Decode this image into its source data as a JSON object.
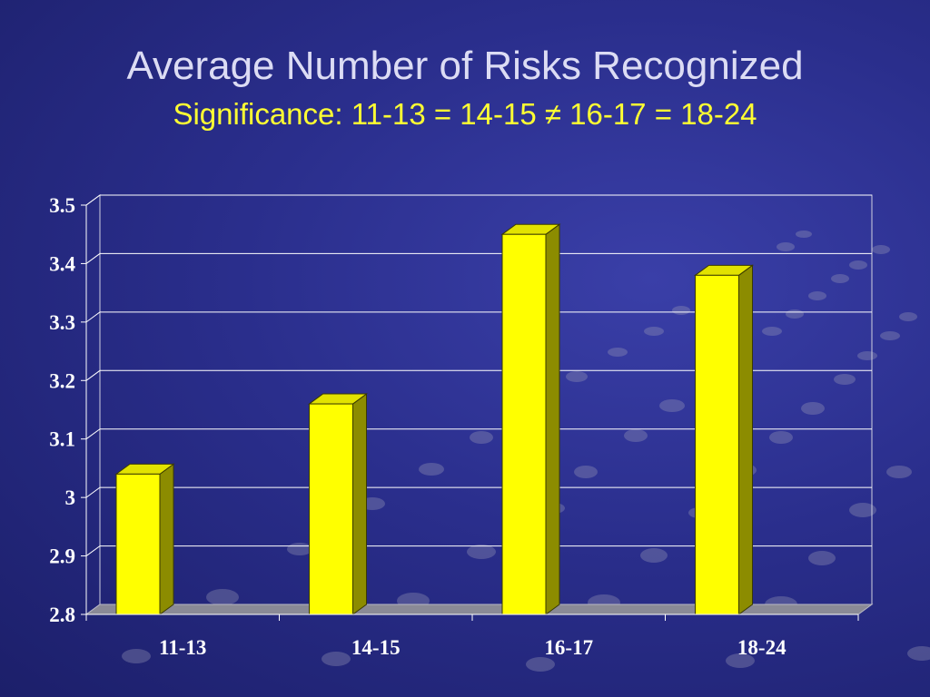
{
  "slide": {
    "title": "Average Number of Risks Recognized",
    "subtitle": "Significance: 11-13 = 14-15 ≠ 16-17 = 18-24"
  },
  "colors": {
    "background": "#2a2e8c",
    "title": "#dcdcf4",
    "subtitle": "#ffff33",
    "bar_front": "#ffff00",
    "bar_top": "#e2e200",
    "bar_side": "#8c8c00",
    "floor": "#8a8a96",
    "gridline": "#ffffff"
  },
  "chart_data": {
    "type": "bar",
    "title": "",
    "xlabel": "",
    "ylabel": "",
    "categories": [
      "11-13",
      "14-15",
      "16-17",
      "18-24"
    ],
    "values": [
      3.04,
      3.16,
      3.45,
      3.38
    ],
    "ylim": [
      2.8,
      3.5
    ],
    "yticks": [
      "3.5",
      "3.4",
      "3.3",
      "3.2",
      "3.1",
      "3",
      "2.9",
      "2.8"
    ],
    "ytick_values": [
      3.5,
      3.4,
      3.3,
      3.2,
      3.1,
      3.0,
      2.9,
      2.8
    ],
    "grid": true,
    "legend": "none",
    "style": "3d-column"
  }
}
